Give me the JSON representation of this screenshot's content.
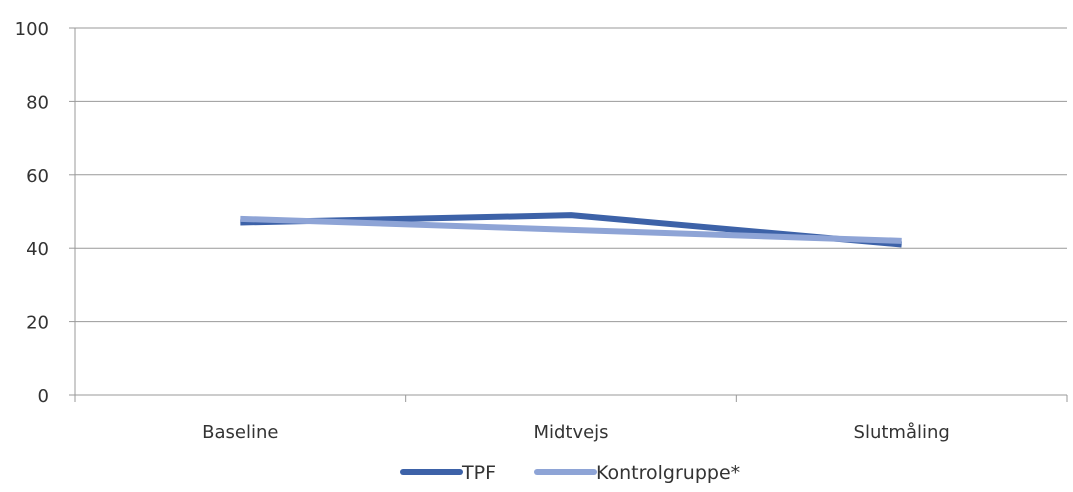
{
  "chart_data": {
    "type": "line",
    "categories": [
      "Baseline",
      "Midtvejs",
      "Slutmåling"
    ],
    "series": [
      {
        "name": "TPF",
        "values": [
          47,
          49,
          41
        ],
        "color": "#3d62a8"
      },
      {
        "name": "Kontrolgruppe*",
        "values": [
          48,
          45,
          42
        ],
        "color": "#8ea4d6"
      }
    ],
    "ylim": [
      0,
      100
    ],
    "yticks": [
      0,
      20,
      40,
      60,
      80,
      100
    ],
    "grid": true,
    "legend_position": "bottom",
    "gridline_color": "#999999"
  }
}
